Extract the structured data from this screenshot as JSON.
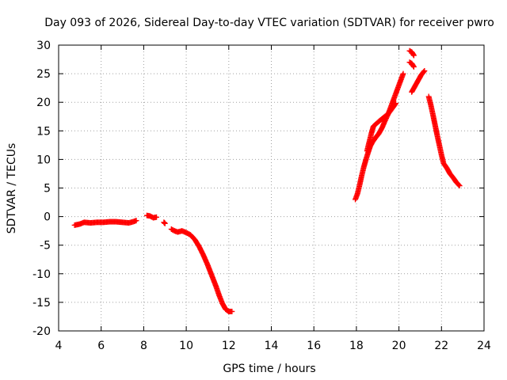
{
  "chart_data": {
    "type": "scatter",
    "title": "Day 093 of 2026, Sidereal Day-to-day VTEC variation (SDTVAR) for receiver pwro",
    "xlabel": "GPS time / hours",
    "ylabel": "SDTVAR / TECUs",
    "xlim": [
      4,
      24
    ],
    "ylim": [
      -20,
      30
    ],
    "xticks": [
      "4",
      "6",
      "8",
      "10",
      "12",
      "14",
      "16",
      "18",
      "20",
      "22",
      "24"
    ],
    "yticks": [
      "30",
      "25",
      "20",
      "15",
      "10",
      "5",
      "0",
      "-5",
      "-10",
      "-15",
      "-20"
    ],
    "grid": true,
    "marker": "+",
    "color": "#ff0000",
    "series": [
      {
        "name": "SDTVAR",
        "segments": [
          [
            [
              4.75,
              -1.5
            ],
            [
              5.0,
              -1.3
            ],
            [
              5.2,
              -1.0
            ],
            [
              5.5,
              -1.1
            ],
            [
              5.8,
              -1.0
            ],
            [
              6.1,
              -1.0
            ],
            [
              6.4,
              -0.9
            ],
            [
              6.7,
              -0.9
            ],
            [
              7.0,
              -1.0
            ],
            [
              7.3,
              -1.1
            ],
            [
              7.5,
              -0.9
            ],
            [
              7.65,
              -0.7
            ]
          ],
          [
            [
              8.15,
              0.2
            ],
            [
              8.3,
              0.1
            ],
            [
              8.45,
              -0.2
            ],
            [
              8.6,
              -0.1
            ]
          ],
          [
            [
              8.95,
              -1.0
            ],
            [
              9.0,
              -1.2
            ]
          ],
          [
            [
              9.3,
              -2.2
            ],
            [
              9.45,
              -2.5
            ],
            [
              9.6,
              -2.7
            ],
            [
              9.8,
              -2.5
            ],
            [
              10.0,
              -2.8
            ],
            [
              10.2,
              -3.2
            ],
            [
              10.4,
              -4.0
            ],
            [
              10.6,
              -5.2
            ],
            [
              10.8,
              -6.7
            ],
            [
              11.0,
              -8.4
            ],
            [
              11.2,
              -10.3
            ],
            [
              11.4,
              -12.2
            ],
            [
              11.55,
              -13.8
            ],
            [
              11.7,
              -15.2
            ],
            [
              11.85,
              -16.2
            ],
            [
              12.0,
              -16.6
            ],
            [
              12.15,
              -16.6
            ]
          ],
          [
            [
              17.95,
              3.0
            ],
            [
              18.05,
              4.0
            ],
            [
              18.15,
              5.5
            ],
            [
              18.25,
              7.2
            ],
            [
              18.35,
              8.7
            ],
            [
              18.45,
              10.0
            ],
            [
              18.55,
              11.2
            ],
            [
              18.65,
              12.3
            ],
            [
              18.75,
              13.0
            ],
            [
              18.9,
              13.8
            ],
            [
              19.05,
              14.5
            ],
            [
              19.2,
              15.5
            ],
            [
              19.35,
              16.8
            ],
            [
              19.5,
              18.0
            ],
            [
              19.6,
              19.0
            ],
            [
              19.7,
              20.0
            ],
            [
              19.8,
              21.0
            ],
            [
              19.9,
              22.0
            ],
            [
              20.0,
              23.0
            ],
            [
              20.1,
              24.0
            ],
            [
              20.2,
              25.0
            ]
          ],
          [
            [
              18.5,
              11.5
            ],
            [
              18.6,
              13.0
            ],
            [
              18.7,
              14.5
            ],
            [
              18.8,
              15.8
            ],
            [
              18.95,
              16.3
            ],
            [
              19.1,
              16.8
            ],
            [
              19.3,
              17.4
            ],
            [
              19.5,
              18.0
            ],
            [
              19.7,
              19.0
            ],
            [
              19.85,
              19.8
            ]
          ],
          [
            [
              20.5,
              29.0
            ],
            [
              20.6,
              28.8
            ],
            [
              20.7,
              28.2
            ]
          ],
          [
            [
              20.5,
              27.0
            ],
            [
              20.6,
              26.8
            ],
            [
              20.7,
              26.2
            ]
          ],
          [
            [
              20.6,
              21.8
            ],
            [
              20.75,
              22.8
            ],
            [
              20.9,
              23.8
            ],
            [
              21.05,
              24.8
            ],
            [
              21.2,
              25.5
            ]
          ],
          [
            [
              21.4,
              21.0
            ],
            [
              21.5,
              19.5
            ],
            [
              21.6,
              17.8
            ],
            [
              21.7,
              16.0
            ],
            [
              21.8,
              14.2
            ],
            [
              21.9,
              12.5
            ],
            [
              22.0,
              10.8
            ],
            [
              22.1,
              9.3
            ],
            [
              22.25,
              8.5
            ],
            [
              22.4,
              7.5
            ],
            [
              22.55,
              6.8
            ],
            [
              22.7,
              6.0
            ],
            [
              22.85,
              5.4
            ]
          ]
        ]
      }
    ]
  }
}
